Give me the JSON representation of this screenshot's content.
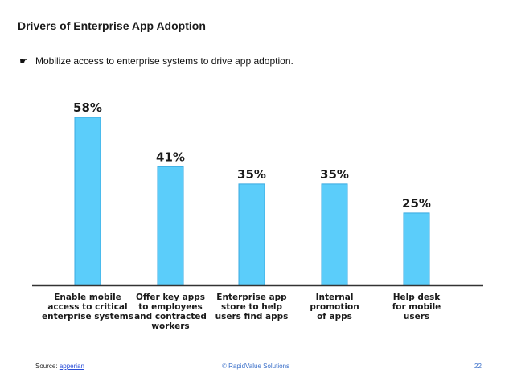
{
  "slide": {
    "title": "Drivers of Enterprise App Adoption",
    "bullet_icon": "pointing-hand-icon",
    "bullet_text": "Mobilize access to enterprise systems to drive app adoption."
  },
  "chart_data": {
    "type": "bar",
    "title": "",
    "xlabel": "",
    "ylabel": "",
    "ylim": [
      0,
      60
    ],
    "grid": false,
    "categories": [
      [
        "Enable mobile",
        "access to critical",
        "enterprise systems"
      ],
      [
        "Offer key apps",
        "to employees",
        "and contracted",
        "workers"
      ],
      [
        "Enterprise app",
        "store to help",
        "users find apps"
      ],
      [
        "Internal",
        "promotion",
        "of apps"
      ],
      [
        "Help desk",
        "for mobile",
        "users"
      ]
    ],
    "values": [
      58,
      41,
      35,
      35,
      25
    ],
    "value_labels": [
      "58%",
      "41%",
      "35%",
      "35%",
      "25%"
    ],
    "colors": {
      "bar": "#5bcdfa",
      "bar_edge": "#39a9e0",
      "axis": "#333333"
    }
  },
  "footer": {
    "source_label": "Source:",
    "source_link": "apperian",
    "copyright": "© RapidValue Solutions",
    "page_number": "22"
  }
}
